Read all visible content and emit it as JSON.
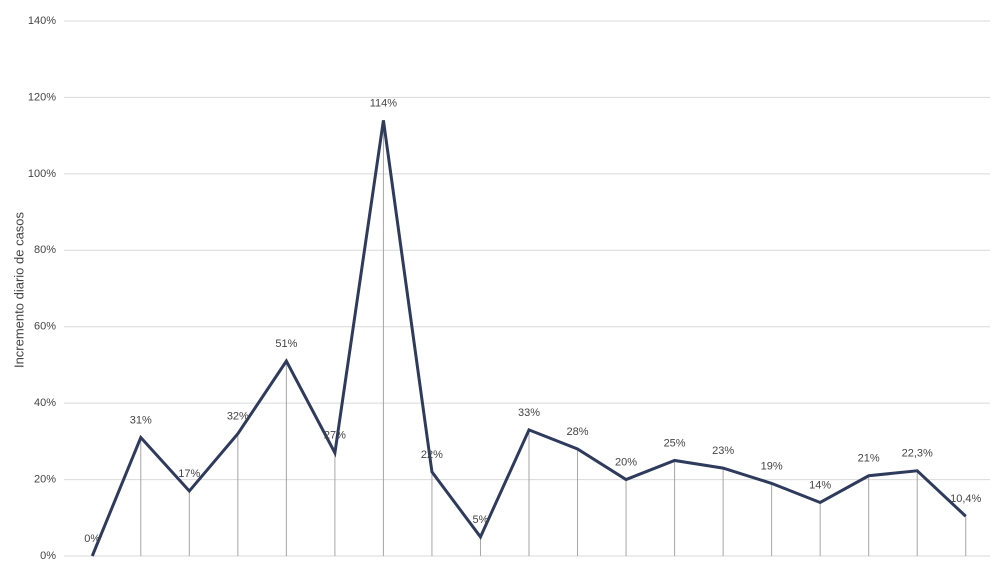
{
  "chart_data": {
    "type": "line",
    "y_label": "Incremento diario de casos",
    "categories": [
      null,
      null,
      null,
      null,
      null,
      null,
      null,
      null,
      null,
      null,
      null,
      null,
      null,
      null,
      null,
      null,
      null,
      null,
      null
    ],
    "values": [
      0,
      31,
      17,
      32,
      51,
      27,
      114,
      22,
      5,
      33,
      28,
      20,
      25,
      23,
      19,
      14,
      21,
      22.3,
      10.4
    ],
    "value_labels": [
      "0%",
      "31%",
      "17%",
      "32%",
      "51%",
      "27%",
      "114%",
      "22%",
      "5%",
      "33%",
      "28%",
      "20%",
      "25%",
      "23%",
      "19%",
      "14%",
      "21%",
      "22,3%",
      "10,4%"
    ],
    "color": "#2f3b5c",
    "ylim": [
      0,
      140
    ],
    "yticks": [
      {
        "value": 0,
        "label": "0%"
      },
      {
        "value": 20,
        "label": "20%"
      },
      {
        "value": 40,
        "label": "40%"
      },
      {
        "value": 60,
        "label": "60%"
      },
      {
        "value": 80,
        "label": "80%"
      },
      {
        "value": 100,
        "label": "100%"
      },
      {
        "value": 120,
        "label": "120%"
      },
      {
        "value": 140,
        "label": "140%"
      }
    ],
    "grid": true,
    "drop_lines": true
  }
}
